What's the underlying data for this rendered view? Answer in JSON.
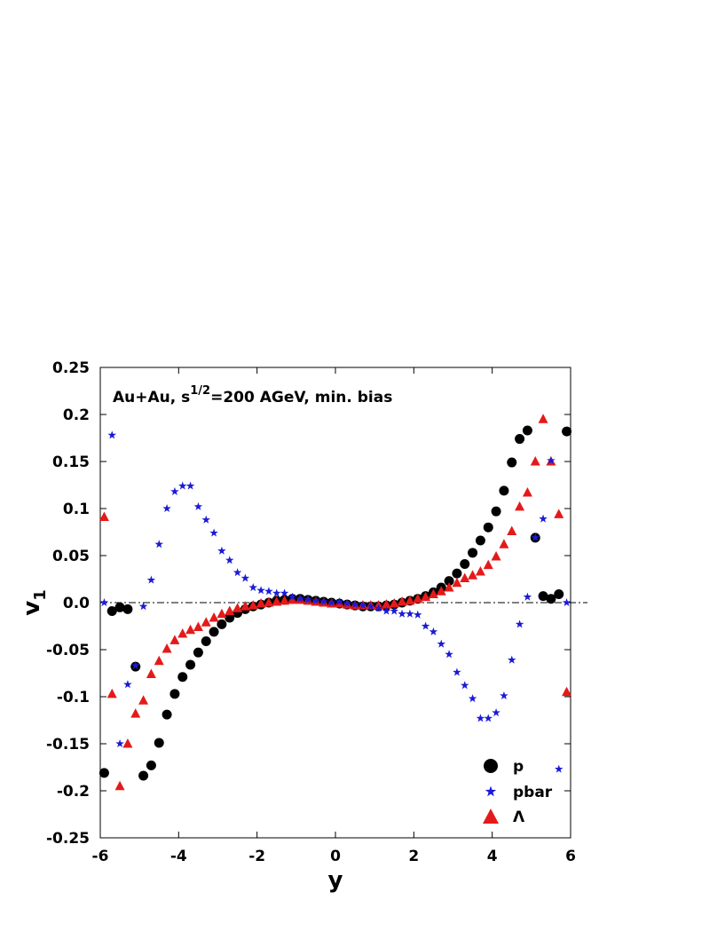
{
  "chart_data": {
    "type": "scatter",
    "annotation": {
      "base": "Au+Au, s",
      "sup": "1/2",
      "rest": "=200 AGeV, min. bias"
    },
    "xlabel": "y",
    "ylabel": {
      "base": "v",
      "sub": "1"
    },
    "xlim": [
      -6,
      6
    ],
    "ylim": [
      -0.25,
      0.25
    ],
    "x_ticks": [
      -6,
      -4,
      -2,
      0,
      2,
      4,
      6
    ],
    "x_tick_labels": [
      "-6",
      "-4",
      "-2",
      "0",
      "2",
      "4",
      "6"
    ],
    "y_ticks": [
      -0.25,
      -0.2,
      -0.15,
      -0.1,
      -0.05,
      0.0,
      0.05,
      0.1,
      0.15,
      0.2,
      0.25
    ],
    "y_tick_labels": [
      "-0.25",
      "-0.2",
      "-0.15",
      "-0.1",
      "-0.05",
      "0.0",
      "0.05",
      "0.1",
      "0.15",
      "0.2",
      "0.25"
    ],
    "zero_line": true,
    "legend_position": "bottom-right",
    "series": [
      {
        "name": "p",
        "marker": "circle",
        "color": "#000000",
        "x": [
          -5.9,
          -5.7,
          -5.5,
          -5.3,
          -5.1,
          -4.9,
          -4.7,
          -4.5,
          -4.3,
          -4.1,
          -3.9,
          -3.7,
          -3.5,
          -3.3,
          -3.1,
          -2.9,
          -2.7,
          -2.5,
          -2.3,
          -2.1,
          -1.9,
          -1.7,
          -1.5,
          -1.3,
          -1.1,
          -0.9,
          -0.7,
          -0.5,
          -0.3,
          -0.1,
          0.1,
          0.3,
          0.5,
          0.7,
          0.9,
          1.1,
          1.3,
          1.5,
          1.7,
          1.9,
          2.1,
          2.3,
          2.5,
          2.7,
          2.9,
          3.1,
          3.3,
          3.5,
          3.7,
          3.9,
          4.1,
          4.3,
          4.5,
          4.7,
          4.9,
          5.1,
          5.3,
          5.5,
          5.7,
          5.9
        ],
        "y": [
          -0.181,
          -0.009,
          -0.005,
          -0.007,
          -0.068,
          -0.184,
          -0.173,
          -0.149,
          -0.119,
          -0.097,
          -0.079,
          -0.066,
          -0.053,
          -0.041,
          -0.031,
          -0.023,
          -0.016,
          -0.011,
          -0.007,
          -0.004,
          -0.002,
          0.0,
          0.002,
          0.003,
          0.004,
          0.004,
          0.003,
          0.002,
          0.001,
          0.0,
          -0.001,
          -0.002,
          -0.003,
          -0.004,
          -0.004,
          -0.004,
          -0.003,
          -0.002,
          0.0,
          0.002,
          0.004,
          0.007,
          0.011,
          0.016,
          0.023,
          0.031,
          0.041,
          0.053,
          0.066,
          0.08,
          0.097,
          0.119,
          0.149,
          0.174,
          0.183,
          0.069,
          0.007,
          0.004,
          0.009,
          0.182
        ]
      },
      {
        "name": "pbar",
        "marker": "star",
        "color": "#1a1ad6",
        "x": [
          -5.9,
          -5.7,
          -5.5,
          -5.3,
          -5.1,
          -4.9,
          -4.7,
          -4.5,
          -4.3,
          -4.1,
          -3.9,
          -3.7,
          -3.5,
          -3.3,
          -3.1,
          -2.9,
          -2.7,
          -2.5,
          -2.3,
          -2.1,
          -1.9,
          -1.7,
          -1.5,
          -1.3,
          -1.1,
          -0.9,
          -0.7,
          -0.5,
          -0.3,
          -0.1,
          0.1,
          0.3,
          0.5,
          0.7,
          0.9,
          1.1,
          1.3,
          1.5,
          1.7,
          1.9,
          2.1,
          2.3,
          2.5,
          2.7,
          2.9,
          3.1,
          3.3,
          3.5,
          3.7,
          3.9,
          4.1,
          4.3,
          4.5,
          4.7,
          4.9,
          5.1,
          5.3,
          5.5,
          5.7,
          5.9
        ],
        "y": [
          0.0,
          0.178,
          -0.15,
          -0.087,
          -0.067,
          -0.004,
          0.024,
          0.062,
          0.1,
          0.118,
          0.124,
          0.124,
          0.102,
          0.088,
          0.074,
          0.055,
          0.045,
          0.032,
          0.026,
          0.016,
          0.013,
          0.012,
          0.01,
          0.01,
          0.006,
          0.004,
          0.003,
          0.002,
          0.001,
          0.0,
          0.001,
          -0.001,
          -0.002,
          -0.003,
          -0.004,
          -0.006,
          -0.009,
          -0.009,
          -0.012,
          -0.012,
          -0.013,
          -0.025,
          -0.031,
          -0.044,
          -0.055,
          -0.074,
          -0.088,
          -0.102,
          -0.123,
          -0.123,
          -0.117,
          -0.099,
          -0.061,
          -0.023,
          0.006,
          0.069,
          0.089,
          0.151,
          -0.177,
          0.0
        ]
      },
      {
        "name": "Λ",
        "marker": "triangle",
        "color": "#e41a1a",
        "x": [
          -5.9,
          -5.7,
          -5.5,
          -5.3,
          -5.1,
          -4.9,
          -4.7,
          -4.5,
          -4.3,
          -4.1,
          -3.9,
          -3.7,
          -3.5,
          -3.3,
          -3.1,
          -2.9,
          -2.7,
          -2.5,
          -2.3,
          -2.1,
          -1.9,
          -1.7,
          -1.5,
          -1.3,
          -1.1,
          -0.9,
          -0.7,
          -0.5,
          -0.3,
          -0.1,
          0.1,
          0.3,
          0.5,
          0.7,
          0.9,
          1.1,
          1.3,
          1.5,
          1.7,
          1.9,
          2.1,
          2.3,
          2.5,
          2.7,
          2.9,
          3.1,
          3.3,
          3.5,
          3.7,
          3.9,
          4.1,
          4.3,
          4.5,
          4.7,
          4.9,
          5.1,
          5.3,
          5.5,
          5.7,
          5.9
        ],
        "y": [
          0.091,
          -0.097,
          -0.195,
          -0.15,
          -0.118,
          -0.104,
          -0.076,
          -0.062,
          -0.049,
          -0.04,
          -0.033,
          -0.029,
          -0.026,
          -0.021,
          -0.016,
          -0.012,
          -0.009,
          -0.006,
          -0.004,
          -0.003,
          -0.001,
          0.0,
          0.001,
          0.002,
          0.003,
          0.003,
          0.002,
          0.001,
          0.0,
          -0.001,
          -0.001,
          -0.002,
          -0.003,
          -0.003,
          -0.003,
          -0.003,
          -0.002,
          -0.001,
          0.001,
          0.002,
          0.004,
          0.006,
          0.009,
          0.012,
          0.016,
          0.021,
          0.026,
          0.029,
          0.033,
          0.04,
          0.049,
          0.062,
          0.076,
          0.102,
          0.117,
          0.15,
          0.195,
          0.15,
          0.094,
          -0.095
        ]
      }
    ]
  }
}
